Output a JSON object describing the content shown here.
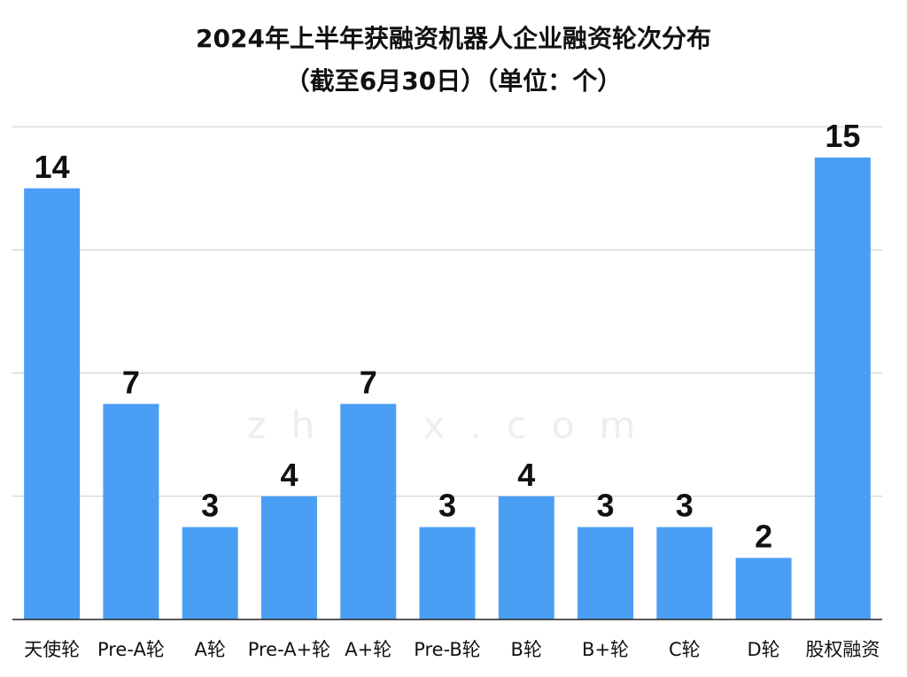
{
  "chart_data": {
    "type": "bar",
    "title": "2024年上半年获融资机器人企业融资轮次分布",
    "subtitle": "（截至6月30日）（单位：个）",
    "categories": [
      "天使轮",
      "Pre-A轮",
      "A轮",
      "Pre-A+轮",
      "A+轮",
      "Pre-B轮",
      "B轮",
      "B+轮",
      "C轮",
      "D轮",
      "股权融资"
    ],
    "values": [
      14,
      7,
      3,
      4,
      7,
      3,
      4,
      3,
      3,
      2,
      15
    ],
    "data_labels": [
      "14",
      "7",
      "3",
      "4",
      "7",
      "3",
      "4",
      "3",
      "3",
      "2",
      "15"
    ],
    "ylim": [
      0,
      16
    ],
    "grid": true,
    "bar_color": "#4a9ff5",
    "xlabel": "",
    "ylabel": ""
  },
  "watermark": {
    "text": "zhidx.com"
  }
}
